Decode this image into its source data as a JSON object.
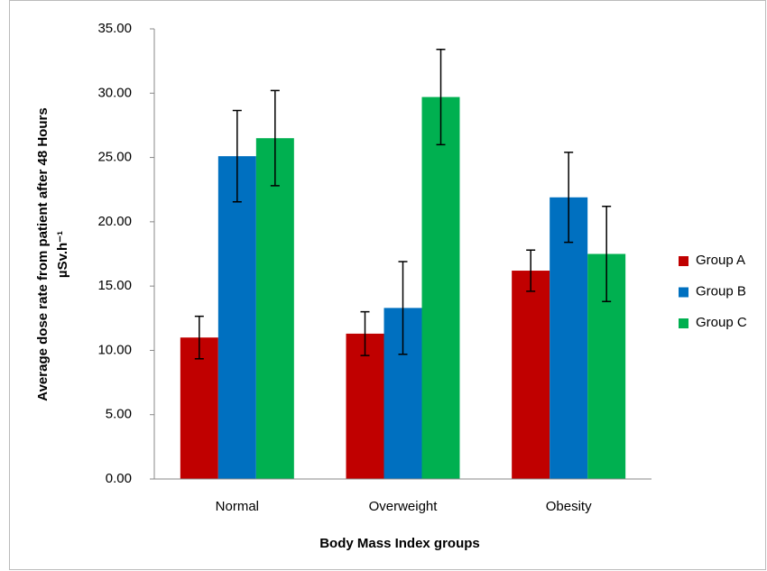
{
  "chart_data": {
    "type": "bar",
    "x_label": "Body Mass Index groups",
    "y_label": [
      "Average dose rate from patient after 48 Hours",
      "µSv.h⁻¹"
    ],
    "categories": [
      "Normal",
      "Overweight",
      "Obesity"
    ],
    "series": [
      {
        "name": "Group A",
        "color": "#c00000",
        "values": [
          11.0,
          11.3,
          16.2
        ],
        "errors": [
          1.65,
          1.7,
          1.6
        ]
      },
      {
        "name": "Group B",
        "color": "#0070c0",
        "values": [
          25.1,
          13.3,
          21.9
        ],
        "errors": [
          3.55,
          3.6,
          3.5
        ]
      },
      {
        "name": "Group C",
        "color": "#00b050",
        "values": [
          26.5,
          29.7,
          17.5
        ],
        "errors": [
          3.7,
          3.7,
          3.7
        ]
      }
    ],
    "ylim": [
      0,
      35
    ],
    "yticks": [
      {
        "value": 0,
        "label": "0.00"
      },
      {
        "value": 5,
        "label": "5.00"
      },
      {
        "value": 10,
        "label": "10.00"
      },
      {
        "value": 15,
        "label": "15.00"
      },
      {
        "value": 20,
        "label": "20.00"
      },
      {
        "value": 25,
        "label": "25.00"
      },
      {
        "value": 30,
        "label": "30.00"
      },
      {
        "value": 35,
        "label": "35.00"
      }
    ],
    "grid": false,
    "legend": "right"
  }
}
